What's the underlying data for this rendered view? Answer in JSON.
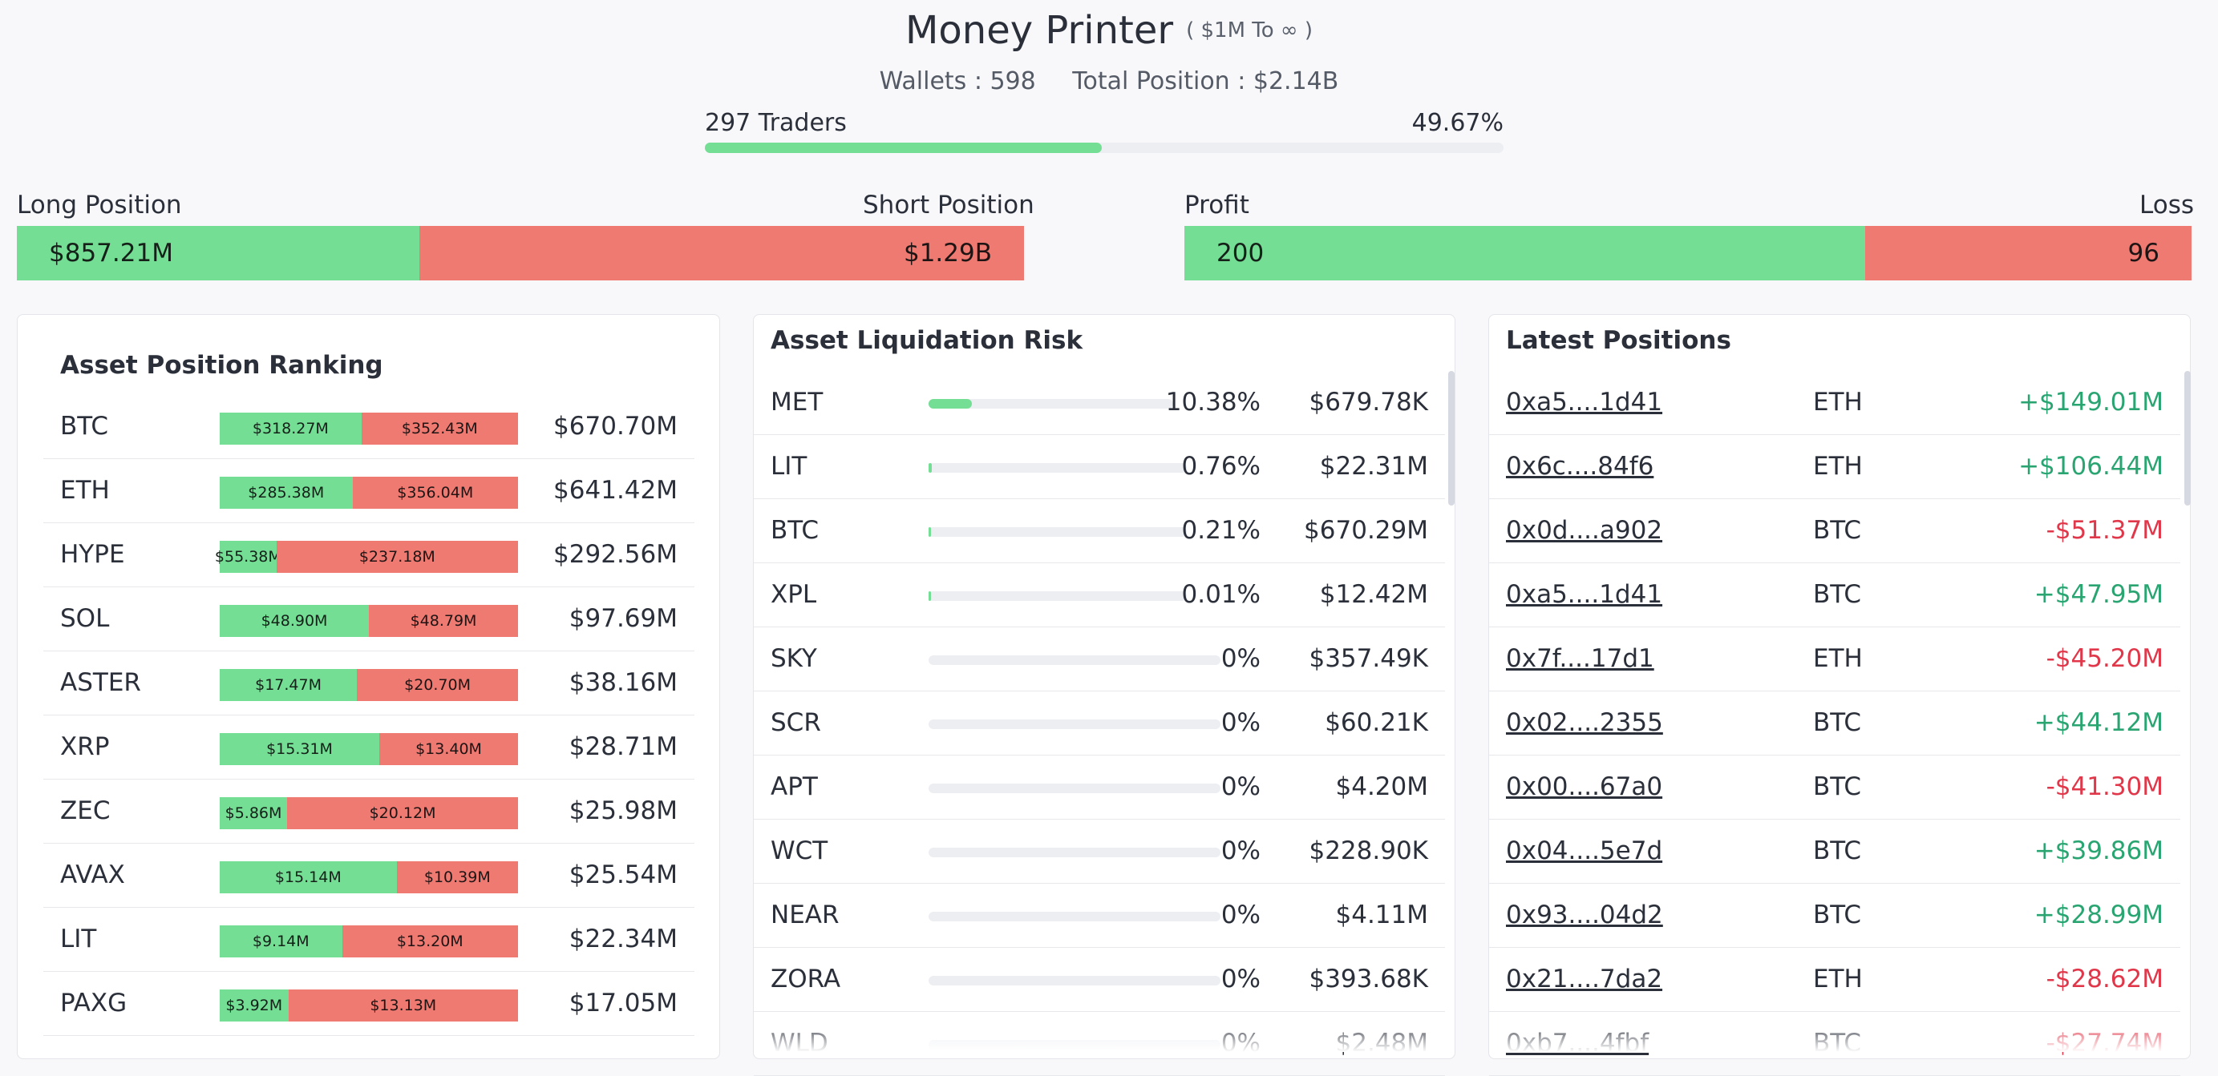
{
  "header": {
    "title": "Money Printer",
    "subtitle": "( $1M To ∞ )",
    "wallets": "Wallets : 598",
    "total_position": "Total Position : $2.14B",
    "traders_label": "297 Traders",
    "traders_pct_label": "49.67%",
    "traders_fraction": 0.4967
  },
  "long_short": {
    "long_label": "Long Position",
    "short_label": "Short Position",
    "long_value": "$857.21M",
    "short_value": "$1.29B",
    "long_fraction": 0.4
  },
  "profit_loss": {
    "profit_label": "Profit",
    "loss_label": "Loss",
    "profit_value": "200",
    "loss_value": "96",
    "profit_fraction": 0.6757
  },
  "ranking": {
    "title": "Asset Position Ranking",
    "rows": [
      {
        "asset": "BTC",
        "long": "$318.27M",
        "short": "$352.43M",
        "total": "$670.70M",
        "long_fraction": 0.475
      },
      {
        "asset": "ETH",
        "long": "$285.38M",
        "short": "$356.04M",
        "total": "$641.42M",
        "long_fraction": 0.445
      },
      {
        "asset": "HYPE",
        "long": "$55.38M",
        "short": "$237.18M",
        "total": "$292.56M",
        "long_fraction": 0.19
      },
      {
        "asset": "SOL",
        "long": "$48.90M",
        "short": "$48.79M",
        "total": "$97.69M",
        "long_fraction": 0.5
      },
      {
        "asset": "ASTER",
        "long": "$17.47M",
        "short": "$20.70M",
        "total": "$38.16M",
        "long_fraction": 0.46
      },
      {
        "asset": "XRP",
        "long": "$15.31M",
        "short": "$13.40M",
        "total": "$28.71M",
        "long_fraction": 0.535
      },
      {
        "asset": "ZEC",
        "long": "$5.86M",
        "short": "$20.12M",
        "total": "$25.98M",
        "long_fraction": 0.226
      },
      {
        "asset": "AVAX",
        "long": "$15.14M",
        "short": "$10.39M",
        "total": "$25.54M",
        "long_fraction": 0.593
      },
      {
        "asset": "LIT",
        "long": "$9.14M",
        "short": "$13.20M",
        "total": "$22.34M",
        "long_fraction": 0.41
      },
      {
        "asset": "PAXG",
        "long": "$3.92M",
        "short": "$13.13M",
        "total": "$17.05M",
        "long_fraction": 0.23
      }
    ]
  },
  "liquidation": {
    "title": "Asset Liquidation Risk",
    "rows": [
      {
        "asset": "MET",
        "pct": "10.38%",
        "value": "$679.78K",
        "fraction": 0.1038
      },
      {
        "asset": "LIT",
        "pct": "0.76%",
        "value": "$22.31M",
        "fraction": 0.0076
      },
      {
        "asset": "BTC",
        "pct": "0.21%",
        "value": "$670.29M",
        "fraction": 0.0021
      },
      {
        "asset": "XPL",
        "pct": "0.01%",
        "value": "$12.42M",
        "fraction": 0.0001
      },
      {
        "asset": "SKY",
        "pct": "0%",
        "value": "$357.49K",
        "fraction": 0
      },
      {
        "asset": "SCR",
        "pct": "0%",
        "value": "$60.21K",
        "fraction": 0
      },
      {
        "asset": "APT",
        "pct": "0%",
        "value": "$4.20M",
        "fraction": 0
      },
      {
        "asset": "WCT",
        "pct": "0%",
        "value": "$228.90K",
        "fraction": 0
      },
      {
        "asset": "NEAR",
        "pct": "0%",
        "value": "$4.11M",
        "fraction": 0
      },
      {
        "asset": "ZORA",
        "pct": "0%",
        "value": "$393.68K",
        "fraction": 0
      },
      {
        "asset": "WLD",
        "pct": "0%",
        "value": "$2.48M",
        "fraction": 0
      }
    ]
  },
  "latest": {
    "title": "Latest Positions",
    "rows": [
      {
        "address": "0xa5....1d41",
        "asset": "ETH",
        "pnl": "+$149.01M"
      },
      {
        "address": "0x6c....84f6",
        "asset": "ETH",
        "pnl": "+$106.44M"
      },
      {
        "address": "0x0d....a902",
        "asset": "BTC",
        "pnl": "-$51.37M"
      },
      {
        "address": "0xa5....1d41",
        "asset": "BTC",
        "pnl": "+$47.95M"
      },
      {
        "address": "0x7f....17d1",
        "asset": "ETH",
        "pnl": "-$45.20M"
      },
      {
        "address": "0x02....2355",
        "asset": "BTC",
        "pnl": "+$44.12M"
      },
      {
        "address": "0x00....67a0",
        "asset": "BTC",
        "pnl": "-$41.30M"
      },
      {
        "address": "0x04....5e7d",
        "asset": "BTC",
        "pnl": "+$39.86M"
      },
      {
        "address": "0x93....04d2",
        "asset": "BTC",
        "pnl": "+$28.99M"
      },
      {
        "address": "0x21....7da2",
        "asset": "ETH",
        "pnl": "-$28.62M"
      },
      {
        "address": "0xb7....4fbf",
        "asset": "BTC",
        "pnl": "-$27.74M"
      }
    ]
  },
  "colors": {
    "green": "#74de95",
    "red": "#ef7a72",
    "pnl_positive": "#2aa572",
    "pnl_negative": "#e0384a"
  }
}
